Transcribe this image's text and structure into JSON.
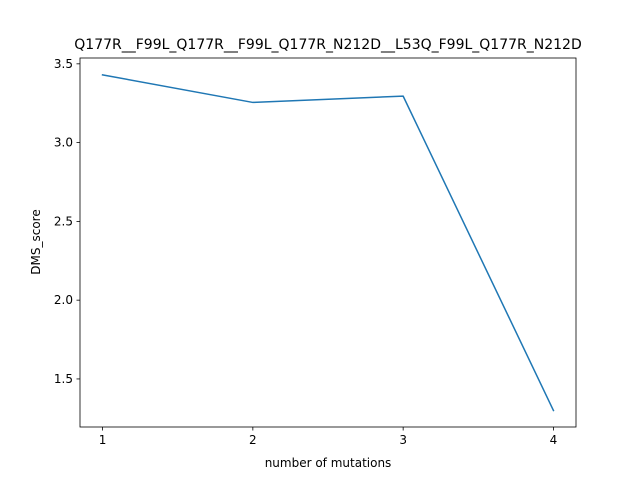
{
  "chart_data": {
    "type": "line",
    "title": "Q177R__F99L_Q177R__F99L_Q177R_N212D__L53Q_F99L_Q177R_N212D",
    "xlabel": "number of mutations",
    "ylabel": "DMS_score",
    "x": [
      1,
      2,
      3,
      4
    ],
    "series": [
      {
        "values": [
          3.43,
          3.255,
          3.295,
          1.3
        ]
      }
    ],
    "xticks": [
      1,
      2,
      3,
      4
    ],
    "xtick_labels": [
      "1",
      "2",
      "3",
      "4"
    ],
    "yticks": [
      1.5,
      2.0,
      2.5,
      3.0,
      3.5
    ],
    "ytick_labels": [
      "1.5",
      "2.0",
      "2.5",
      "3.0",
      "3.5"
    ],
    "xlim": [
      0.85,
      4.15
    ],
    "ylim": [
      1.195,
      3.537
    ],
    "grid": false,
    "line_color": "#1f77b4"
  }
}
